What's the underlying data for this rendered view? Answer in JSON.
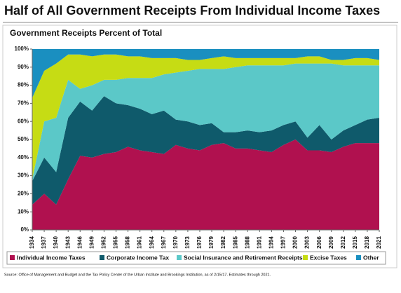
{
  "chart_data": {
    "type": "stacked_area",
    "title": "Half of All Government Receipts From Individual Income Taxes",
    "subtitle": "Government Receipts Percent of Total",
    "source": "Source: Office of Management and Budget and the Tax Policy Center of the Urban Institute and Brookings Institution, as of 2/15/17. Estimates through 2021.",
    "x": [
      1934,
      1937,
      1940,
      1943,
      1946,
      1949,
      1952,
      1955,
      1958,
      1961,
      1964,
      1967,
      1970,
      1973,
      1976,
      1979,
      1982,
      1985,
      1988,
      1991,
      1994,
      1997,
      2000,
      2003,
      2006,
      2009,
      2012,
      2015,
      2018,
      2021
    ],
    "xlim": [
      1934,
      2021
    ],
    "xticks": [
      1934,
      1937,
      1940,
      1943,
      1946,
      1949,
      1952,
      1955,
      1958,
      1961,
      1964,
      1967,
      1970,
      1973,
      1976,
      1979,
      1982,
      1985,
      1988,
      1991,
      1994,
      1997,
      2000,
      2003,
      2006,
      2009,
      2012,
      2015,
      2018,
      2021
    ],
    "ylim": [
      0,
      100
    ],
    "yticks": [
      {
        "value": 0,
        "label": "0%"
      },
      {
        "value": 10,
        "label": "10%"
      },
      {
        "value": 20,
        "label": "20%"
      },
      {
        "value": 30,
        "label": "30%"
      },
      {
        "value": 40,
        "label": "40%"
      },
      {
        "value": 50,
        "label": "50%"
      },
      {
        "value": 60,
        "label": "60%"
      },
      {
        "value": 70,
        "label": "70%"
      },
      {
        "value": 80,
        "label": "80%"
      },
      {
        "value": 90,
        "label": "90%"
      },
      {
        "value": 100,
        "label": "100%"
      }
    ],
    "series": [
      {
        "name": "Individual Income Taxes",
        "color": "#b0114f",
        "values": [
          14,
          20,
          14,
          28,
          41,
          40,
          42,
          43,
          46,
          44,
          43,
          42,
          47,
          45,
          44,
          47,
          48,
          45,
          45,
          44,
          43,
          47,
          50,
          44,
          44,
          43,
          46,
          48,
          48,
          48
        ]
      },
      {
        "name": "Corporate Income Tax",
        "color": "#0f5a6b",
        "values": [
          13,
          20,
          18,
          34,
          30,
          26,
          32,
          27,
          23,
          23,
          21,
          24,
          14,
          15,
          14,
          12,
          6,
          9,
          10,
          10,
          12,
          11,
          10,
          7,
          14,
          7,
          9,
          10,
          13,
          14
        ]
      },
      {
        "name": "Social Insurance and Retirement Receipts",
        "color": "#5bc8c8",
        "values": [
          1,
          20,
          30,
          21,
          7,
          14,
          9,
          13,
          15,
          17,
          20,
          20,
          26,
          28,
          31,
          30,
          35,
          36,
          36,
          37,
          36,
          33,
          32,
          41,
          34,
          42,
          36,
          33,
          30,
          29
        ]
      },
      {
        "name": "Excise Taxes",
        "color": "#c6dc14",
        "values": [
          45,
          28,
          30,
          14,
          19,
          16,
          14,
          14,
          12,
          12,
          11,
          9,
          8,
          6,
          5,
          6,
          7,
          5,
          4,
          4,
          4,
          4,
          3,
          4,
          4,
          2,
          3,
          4,
          4,
          3
        ]
      },
      {
        "name": "Other",
        "color": "#1a8fc0",
        "values": [
          27,
          12,
          8,
          3,
          3,
          4,
          3,
          3,
          4,
          4,
          5,
          5,
          5,
          6,
          6,
          5,
          4,
          5,
          5,
          5,
          5,
          5,
          5,
          4,
          4,
          6,
          6,
          5,
          5,
          6
        ]
      }
    ]
  }
}
